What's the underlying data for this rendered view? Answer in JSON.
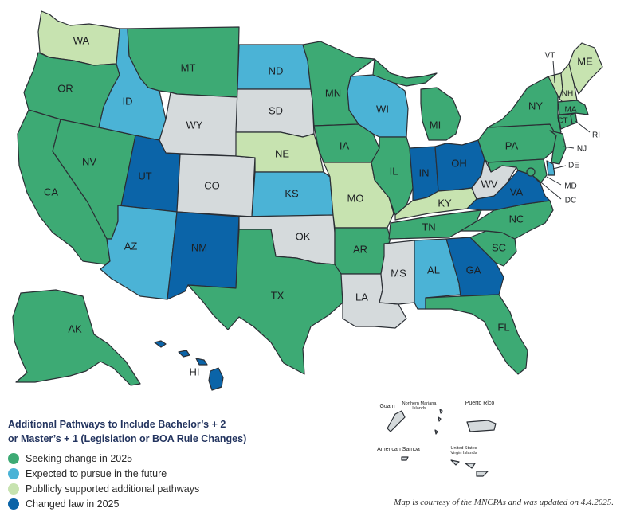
{
  "legend": {
    "title_line1": "Additional Pathways to Include Bachelor’s + 2",
    "title_line2": "or Master’s + 1 (Legislation or BOA Rule Changes)",
    "items": [
      {
        "label": "Seeking change in 2025",
        "color": "#3daa74"
      },
      {
        "label": "Expected to pursue in the future",
        "color": "#4bb3d6"
      },
      {
        "label": "Publlicly supported additional pathways",
        "color": "#c7e3b0"
      },
      {
        "label": "Changed law in 2025",
        "color": "#0b64a8"
      }
    ]
  },
  "note": "Map is courtesy of the MNCPAs and was updated on 4.4.2025.",
  "colors": {
    "seeking": "#3daa74",
    "expected": "#4bb3d6",
    "supported": "#c7e3b0",
    "changed": "#0b64a8",
    "none": "#d5dadc"
  },
  "states": {
    "WA": "supported",
    "OR": "seeking",
    "CA": "seeking",
    "NV": "seeking",
    "ID": "expected",
    "MT": "seeking",
    "WY": "none",
    "UT": "changed",
    "CO": "none",
    "AZ": "expected",
    "NM": "changed",
    "ND": "expected",
    "SD": "none",
    "NE": "supported",
    "KS": "expected",
    "OK": "none",
    "TX": "seeking",
    "MN": "seeking",
    "IA": "seeking",
    "MO": "supported",
    "AR": "seeking",
    "LA": "none",
    "WI": "expected",
    "IL": "seeking",
    "MI": "seeking",
    "IN": "changed",
    "OH": "changed",
    "KY": "supported",
    "TN": "seeking",
    "MS": "none",
    "AL": "expected",
    "GA": "changed",
    "FL": "seeking",
    "SC": "seeking",
    "NC": "seeking",
    "VA": "changed",
    "WV": "none",
    "PA": "seeking",
    "NY": "seeking",
    "NJ": "seeking",
    "DE": "expected",
    "MD": "seeking",
    "DC": "seeking",
    "CT": "seeking",
    "RI": "seeking",
    "MA": "seeking",
    "VT": "supported",
    "NH": "supported",
    "ME": "supported",
    "AK": "seeking",
    "HI": "changed"
  },
  "territories": {
    "guam": "Guam",
    "northern_mariana": "Northern Mariana Islands",
    "puerto_rico": "Puerto Rico",
    "american_samoa": "American Samoa",
    "virgin_islands": "United States Virgin Islands"
  }
}
